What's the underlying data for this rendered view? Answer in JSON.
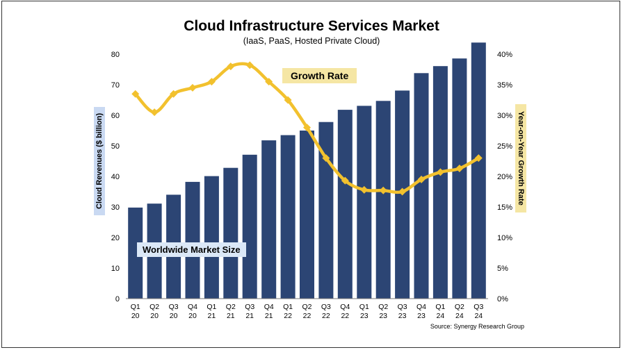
{
  "chart_data": {
    "type": "bar",
    "title": "Cloud Infrastructure Services Market",
    "subtitle": "(IaaS, PaaS, Hosted Private Cloud)",
    "categories": [
      "Q1 20",
      "Q2 20",
      "Q3 20",
      "Q4 20",
      "Q1 21",
      "Q2 21",
      "Q3 21",
      "Q4 21",
      "Q1 22",
      "Q2 22",
      "Q3 22",
      "Q4 22",
      "Q1 23",
      "Q2 23",
      "Q3 23",
      "Q4 23",
      "Q1 24",
      "Q2 24",
      "Q3 24"
    ],
    "category_lines": [
      [
        "Q1",
        "20"
      ],
      [
        "Q2",
        "20"
      ],
      [
        "Q3",
        "20"
      ],
      [
        "Q4",
        "20"
      ],
      [
        "Q1",
        "21"
      ],
      [
        "Q2",
        "21"
      ],
      [
        "Q3",
        "21"
      ],
      [
        "Q4",
        "21"
      ],
      [
        "Q1",
        "22"
      ],
      [
        "Q2",
        "22"
      ],
      [
        "Q3",
        "22"
      ],
      [
        "Q4",
        "22"
      ],
      [
        "Q1",
        "23"
      ],
      [
        "Q2",
        "23"
      ],
      [
        "Q3",
        "23"
      ],
      [
        "Q4",
        "23"
      ],
      [
        "Q1",
        "24"
      ],
      [
        "Q2",
        "24"
      ],
      [
        "Q3",
        "24"
      ]
    ],
    "series": [
      {
        "name": "Worldwide Market Size",
        "type": "bar",
        "axis": "left",
        "color": "#2c4574",
        "values": [
          29.8,
          31.1,
          34.0,
          38.2,
          40.1,
          42.8,
          47.1,
          51.8,
          53.5,
          55.0,
          57.8,
          61.8,
          63.1,
          64.7,
          68.1,
          73.8,
          76.1,
          78.6,
          83.8
        ]
      },
      {
        "name": "Growth Rate",
        "type": "line",
        "axis": "right",
        "color": "#f2c12e",
        "values": [
          33.5,
          30.5,
          33.5,
          34.5,
          35.5,
          38.0,
          38.2,
          35.5,
          32.5,
          28.0,
          23.0,
          19.3,
          17.8,
          17.7,
          17.5,
          19.5,
          20.7,
          21.3,
          23.0
        ]
      }
    ],
    "ylabel": "Cloud Revenues ($ billion)",
    "ylim": [
      0,
      80
    ],
    "yticks": [
      "0",
      "10",
      "20",
      "30",
      "40",
      "50",
      "60",
      "70",
      "80"
    ],
    "y2label": "Year-on-Year Growth Rate",
    "y2lim": [
      0,
      40
    ],
    "y2ticks": [
      "0%",
      "5%",
      "10%",
      "15%",
      "20%",
      "25%",
      "30%",
      "35%",
      "40%"
    ],
    "grid": false,
    "source": "Source: Synergy Research Group"
  }
}
